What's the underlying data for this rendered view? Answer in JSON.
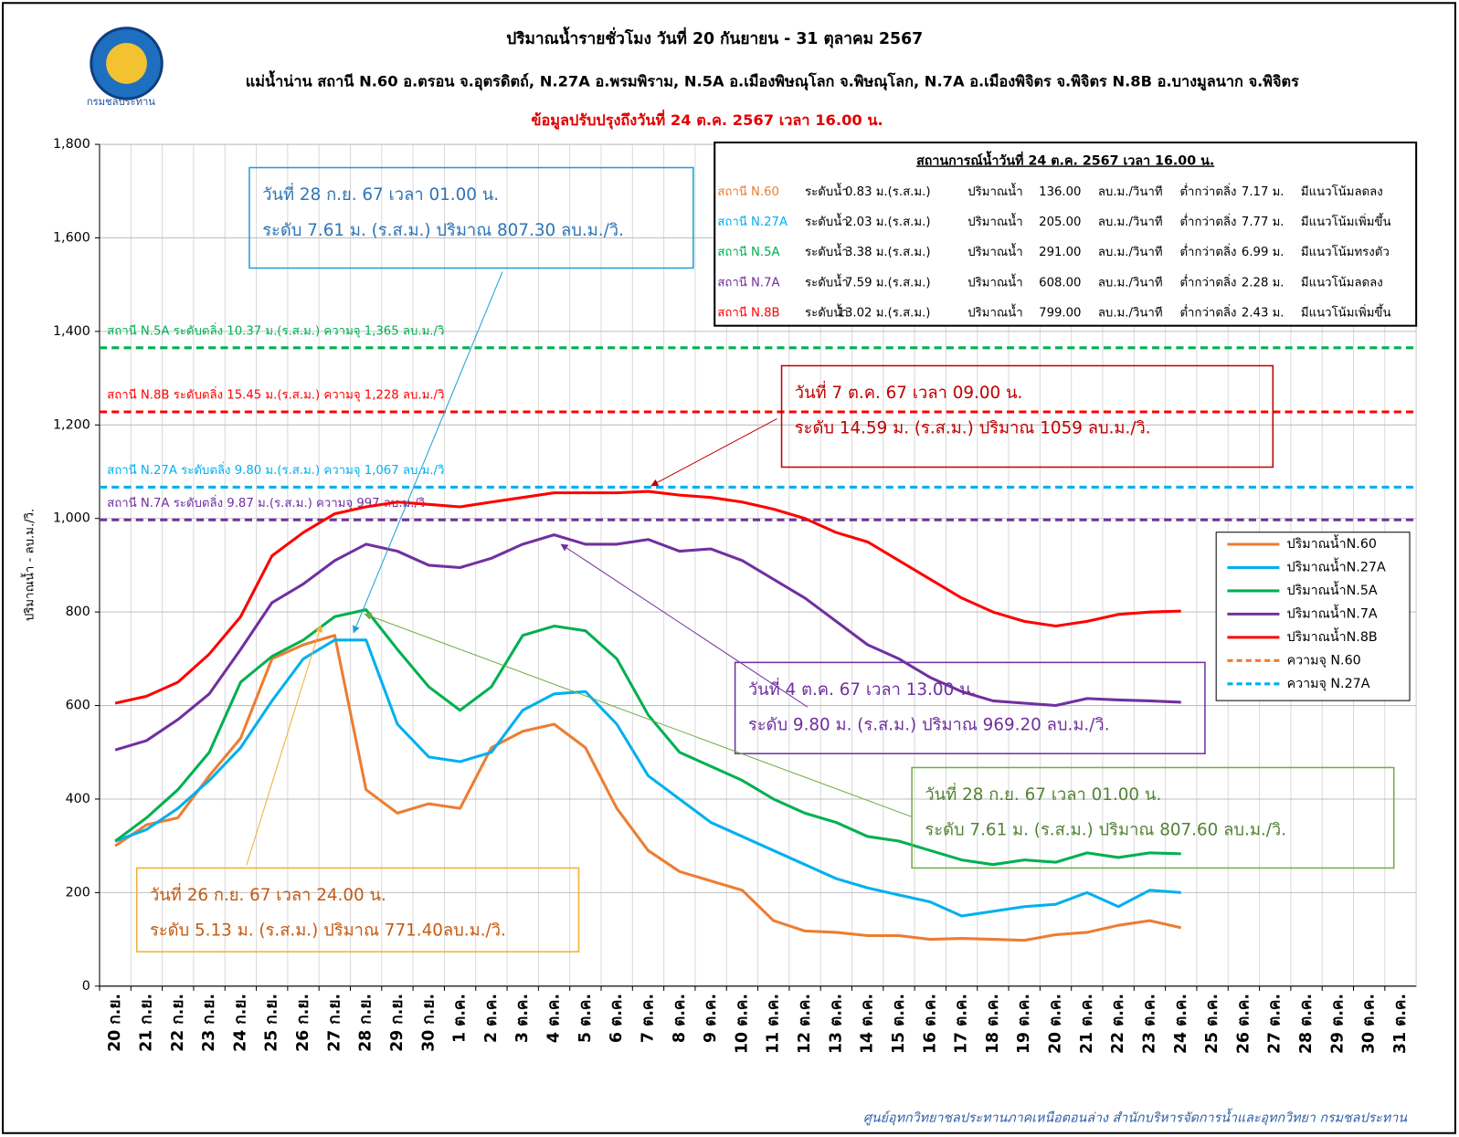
{
  "chart_data": {
    "type": "line",
    "title": "ปริมาณน้ำรายชั่วโมง วันที่ 20 กันยายน - 31 ตุลาคม 2567",
    "subtitle": "แม่น้ำน่าน สถานี N.60 อ.ตรอน จ.อุตรดิตถ์, N.27A อ.พรมพิราม, N.5A อ.เมืองพิษณุโลก จ.พิษณุโลก, N.7A อ.เมืองพิจิตร จ.พิจิตร N.8B  อ.บางมูลนาก จ.พิจิตร",
    "update_note": "ข้อมูลปรับปรุงถึงวันที่ 24 ต.ค. 2567 เวลา 16.00 น.",
    "logo_text": "กรมชลประทาน",
    "y_label": "ปริมาณน้ำ - ลบ.ม./วิ.",
    "footer": "ศูนย์อุทกวิทยาชลประทานภาคเหนือตอนล่าง สำนักบริหารจัดการน้ำและอุทกวิทยา กรมชลประทาน",
    "categories": [
      "20 ก.ย.",
      "21 ก.ย.",
      "22 ก.ย.",
      "23 ก.ย.",
      "24 ก.ย.",
      "25 ก.ย.",
      "26 ก.ย.",
      "27 ก.ย.",
      "28 ก.ย.",
      "29 ก.ย.",
      "30 ก.ย.",
      "1 ต.ค.",
      "2 ต.ค.",
      "3 ต.ค.",
      "4 ต.ค.",
      "5 ต.ค.",
      "6 ต.ค.",
      "7 ต.ค.",
      "8 ต.ค.",
      "9 ต.ค.",
      "10 ต.ค.",
      "11 ต.ค.",
      "12 ต.ค.",
      "13 ต.ค.",
      "14 ต.ค.",
      "15 ต.ค.",
      "16 ต.ค.",
      "17 ต.ค.",
      "18 ต.ค.",
      "19 ต.ค.",
      "20 ต.ค.",
      "21 ต.ค.",
      "22 ต.ค.",
      "23 ต.ค.",
      "24 ต.ค.",
      "25 ต.ค.",
      "26 ต.ค.",
      "27 ต.ค.",
      "28 ต.ค.",
      "29 ต.ค.",
      "30 ต.ค.",
      "31 ต.ค."
    ],
    "series": [
      {
        "name": "ปริมาณน้ำN.60",
        "color": "#ed7d31",
        "values": [
          300,
          345,
          360,
          450,
          530,
          700,
          730,
          750,
          420,
          370,
          390,
          380,
          510,
          545,
          560,
          510,
          380,
          290,
          245,
          225,
          205,
          140,
          118,
          115,
          108,
          108,
          100,
          102,
          100,
          98,
          110,
          115,
          130,
          140,
          125,
          null,
          null,
          null,
          null,
          null,
          null,
          null
        ]
      },
      {
        "name": "ปริมาณน้ำN.27A",
        "color": "#00b0f0",
        "values": [
          310,
          335,
          380,
          440,
          510,
          610,
          700,
          740,
          740,
          560,
          490,
          480,
          500,
          590,
          625,
          630,
          560,
          450,
          400,
          350,
          320,
          290,
          260,
          230,
          210,
          195,
          180,
          150,
          160,
          170,
          175,
          200,
          170,
          205,
          200,
          null,
          null,
          null,
          null,
          null,
          null,
          null
        ]
      },
      {
        "name": "ปริมาณน้ำN.5A",
        "color": "#00b050",
        "values": [
          310,
          360,
          420,
          500,
          650,
          705,
          740,
          790,
          805,
          720,
          640,
          590,
          640,
          750,
          770,
          760,
          700,
          580,
          500,
          470,
          440,
          400,
          370,
          350,
          320,
          310,
          290,
          270,
          260,
          270,
          265,
          285,
          275,
          285,
          283,
          null,
          null,
          null,
          null,
          null,
          null,
          null
        ]
      },
      {
        "name": "ปริมาณน้ำN.7A",
        "color": "#7030a0",
        "values": [
          505,
          525,
          570,
          625,
          720,
          820,
          860,
          910,
          945,
          930,
          900,
          895,
          915,
          945,
          965,
          945,
          945,
          955,
          930,
          935,
          910,
          870,
          830,
          780,
          730,
          700,
          660,
          630,
          610,
          605,
          600,
          615,
          612,
          610,
          607,
          null,
          null,
          null,
          null,
          null,
          null,
          null
        ]
      },
      {
        "name": "ปริมาณน้ำN.8B",
        "color": "#ff0000",
        "values": [
          605,
          620,
          650,
          710,
          790,
          920,
          970,
          1010,
          1025,
          1035,
          1030,
          1025,
          1035,
          1045,
          1055,
          1055,
          1055,
          1058,
          1050,
          1045,
          1035,
          1020,
          1000,
          970,
          950,
          910,
          870,
          830,
          800,
          780,
          770,
          780,
          795,
          800,
          802,
          null,
          null,
          null,
          null,
          null,
          null,
          null
        ]
      }
    ],
    "legend_dashed": [
      {
        "name": "ความจุ N.60",
        "color": "#ed7d31"
      },
      {
        "name": "ความจุ N.27A",
        "color": "#00b0f0"
      }
    ],
    "reference_lines": [
      {
        "value": 1365,
        "color": "#00b050",
        "label": "สถานี N.5A ระดับตลิ่ง 10.37 ม.(ร.ส.ม.) ความจุ 1,365 ลบ.ม./วิ"
      },
      {
        "value": 1228,
        "color": "#ff0000",
        "label": "สถานี N.8B ระดับตลิ่ง 15.45 ม.(ร.ส.ม.) ความจุ 1,228 ลบ.ม./วิ"
      },
      {
        "value": 1067,
        "color": "#00b0f0",
        "label": "สถานี N.27A ระดับตลิ่ง 9.80 ม.(ร.ส.ม.) ความจุ 1,067 ลบ.ม./วิ"
      },
      {
        "value": 997,
        "color": "#7030a0",
        "label": "สถานี N.7A ระดับตลิ่ง 9.87 ม.(ร.ส.ม.) ความจุ 997 ลบ.ม./วิ"
      }
    ],
    "ylim": [
      0,
      1800
    ],
    "yticks": [
      0,
      200,
      400,
      600,
      800,
      {
        "value": 1000,
        "label": "1,000"
      },
      {
        "value": 1200,
        "label": "1,200"
      },
      {
        "value": 1400,
        "label": "1,400"
      },
      {
        "value": 1600,
        "label": "1,600"
      },
      {
        "value": 1800,
        "label": "1,800"
      }
    ],
    "grid": true,
    "legend": "right",
    "annotations": [
      {
        "color": "#2e75b6",
        "border": "#1fa0d0",
        "lines": [
          "วันที่ 28 ก.ย. 67 เวลา 01.00 น.",
          "ระดับ 7.61  ม. (ร.ส.ม.) ปริมาณ 807.30 ลบ.ม./วิ."
        ]
      },
      {
        "color": "#c00000",
        "border": "#c00000",
        "lines": [
          "วันที่ 7 ต.ค. 67 เวลา 09.00 น.",
          "ระดับ 14.59  ม. (ร.ส.ม.) ปริมาณ 1059 ลบ.ม./วิ."
        ]
      },
      {
        "color": "#7030a0",
        "border": "#7030a0",
        "lines": [
          "วันที่ 4 ต.ค. 67 เวลา 13.00 น.",
          "ระดับ 9.80  ม. (ร.ส.ม.) ปริมาณ 969.20 ลบ.ม./วิ."
        ]
      },
      {
        "color": "#548235",
        "border": "#70ad47",
        "lines": [
          "วันที่ 28 ก.ย. 67 เวลา 01.00 น.",
          "ระดับ 7.61  ม. (ร.ส.ม.) ปริมาณ 807.60 ลบ.ม./วิ."
        ]
      },
      {
        "color": "#c55a11",
        "border": "#f0b030",
        "lines": [
          "วันที่ 26 ก.ย. 67 เวลา 24.00 น.",
          "ระดับ 5.13  ม. (ร.ส.ม.) ปริมาณ 771.40ลบ.ม./วิ."
        ]
      }
    ],
    "status_table": {
      "title": "สถานการณ์น้ำวันที่ 24 ต.ค. 2567 เวลา 16.00 น.",
      "colors": [
        "#ed7d31",
        "#00b0f0",
        "#00b050",
        "#7030a0",
        "#ff0000"
      ],
      "rows": [
        [
          "สถานี N.60",
          "ระดับน้ำ",
          "0.83 ม.(ร.ส.ม.)",
          "ปริมาณน้ำ",
          "136.00",
          "ลบ.ม./วินาที",
          "ต่ำกว่าตลิ่ง",
          "7.17 ม.",
          "มีแนวโน้มลดลง"
        ],
        [
          "สถานี N.27A",
          "ระดับน้ำ",
          "2.03 ม.(ร.ส.ม.)",
          "ปริมาณน้ำ",
          "205.00",
          "ลบ.ม./วินาที",
          "ต่ำกว่าตลิ่ง",
          "7.77 ม.",
          "มีแนวโน้มเพิ่มขึ้น"
        ],
        [
          "สถานี N.5A",
          "ระดับน้ำ",
          "3.38 ม.(ร.ส.ม.)",
          "ปริมาณน้ำ",
          "291.00",
          "ลบ.ม./วินาที",
          "ต่ำกว่าตลิ่ง",
          "6.99 ม.",
          "มีแนวโน้มทรงตัว"
        ],
        [
          "สถานี N.7A",
          "ระดับน้ำ",
          "7.59 ม.(ร.ส.ม.)",
          "ปริมาณน้ำ",
          "608.00",
          "ลบ.ม./วินาที",
          "ต่ำกว่าตลิ่ง",
          "2.28 ม.",
          "มีแนวโน้มลดลง"
        ],
        [
          "สถานี N.8B",
          "ระดับน้ำ",
          "13.02 ม.(ร.ส.ม.)",
          "ปริมาณน้ำ",
          "799.00",
          "ลบ.ม./วินาที",
          "ต่ำกว่าตลิ่ง",
          "2.43 ม.",
          "มีแนวโน้มเพิ่มขึ้น"
        ]
      ]
    }
  }
}
